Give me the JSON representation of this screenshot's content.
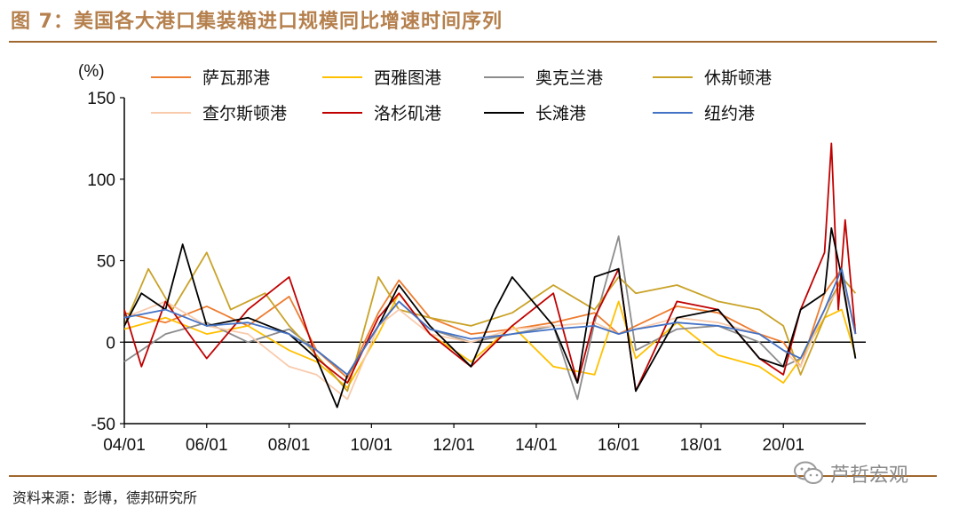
{
  "figure": {
    "title": "图 7：美国各大港口集装箱进口规模同比增速时间序列",
    "source": "资料来源：彭博，德邦研究所",
    "watermark": "芦哲宏观"
  },
  "chart_data": {
    "type": "line",
    "ylabel": "(%)",
    "ylim": [
      -50,
      150
    ],
    "yticks": [
      -50,
      0,
      50,
      100,
      150
    ],
    "ytick_labels": [
      "-50",
      "0",
      "50",
      "100",
      "150"
    ],
    "x_start": "2004-01",
    "x_end": "2022-01",
    "xticks": [
      "2004-01",
      "2006-01",
      "2008-01",
      "2010-01",
      "2012-01",
      "2014-01",
      "2016-01",
      "2018-01",
      "2020-01"
    ],
    "xtick_labels": [
      "04/01",
      "06/01",
      "08/01",
      "10/01",
      "12/01",
      "14/01",
      "16/01",
      "18/01",
      "20/01"
    ],
    "legend_position": "top",
    "series": [
      {
        "name": "萨瓦那港",
        "color": "#ed7d31",
        "x": [
          "2004-01",
          "2005-01",
          "2006-01",
          "2007-01",
          "2008-01",
          "2008-09",
          "2009-06",
          "2010-03",
          "2010-09",
          "2011-06",
          "2012-06",
          "2013-06",
          "2014-06",
          "2015-06",
          "2016-01",
          "2016-06",
          "2017-06",
          "2018-06",
          "2019-06",
          "2020-01",
          "2020-06",
          "2021-01",
          "2021-06",
          "2021-10"
        ],
        "values": [
          18,
          12,
          22,
          10,
          28,
          -5,
          -22,
          18,
          38,
          15,
          5,
          8,
          12,
          18,
          5,
          10,
          22,
          18,
          5,
          0,
          -15,
          30,
          45,
          5
        ]
      },
      {
        "name": "西雅图港",
        "color": "#ffc000",
        "x": [
          "2004-01",
          "2005-01",
          "2006-01",
          "2007-01",
          "2008-01",
          "2008-09",
          "2009-06",
          "2010-03",
          "2010-09",
          "2011-06",
          "2012-06",
          "2013-06",
          "2014-06",
          "2015-06",
          "2016-01",
          "2016-06",
          "2017-06",
          "2018-06",
          "2019-06",
          "2020-01",
          "2020-06",
          "2021-01",
          "2021-06",
          "2021-10"
        ],
        "values": [
          8,
          15,
          5,
          10,
          -5,
          -12,
          -28,
          5,
          30,
          5,
          -12,
          10,
          -15,
          -20,
          25,
          -10,
          12,
          -8,
          -15,
          -25,
          -10,
          15,
          20,
          -8
        ]
      },
      {
        "name": "奥克兰港",
        "color": "#8c8c8c",
        "x": [
          "2004-01",
          "2005-01",
          "2006-01",
          "2007-01",
          "2008-01",
          "2008-09",
          "2009-06",
          "2010-03",
          "2010-09",
          "2011-06",
          "2012-06",
          "2013-06",
          "2014-06",
          "2015-01",
          "2015-06",
          "2016-01",
          "2016-06",
          "2017-06",
          "2018-06",
          "2019-06",
          "2020-01",
          "2020-06",
          "2021-01",
          "2021-06",
          "2021-10"
        ],
        "values": [
          -12,
          5,
          12,
          0,
          8,
          -5,
          -20,
          10,
          25,
          8,
          0,
          5,
          10,
          -35,
          12,
          65,
          -5,
          8,
          10,
          0,
          -15,
          -10,
          20,
          38,
          -10
        ]
      },
      {
        "name": "休斯顿港",
        "color": "#c9a227",
        "x": [
          "2004-01",
          "2004-08",
          "2005-03",
          "2006-01",
          "2006-08",
          "2007-06",
          "2008-01",
          "2008-09",
          "2009-06",
          "2010-03",
          "2010-09",
          "2011-06",
          "2012-06",
          "2013-06",
          "2014-06",
          "2015-06",
          "2016-01",
          "2016-06",
          "2017-06",
          "2018-06",
          "2019-06",
          "2020-01",
          "2020-06",
          "2021-01",
          "2021-06",
          "2021-10"
        ],
        "values": [
          10,
          45,
          20,
          55,
          20,
          30,
          10,
          -8,
          -30,
          40,
          20,
          15,
          10,
          18,
          35,
          20,
          40,
          30,
          35,
          25,
          20,
          10,
          -20,
          15,
          40,
          30
        ]
      },
      {
        "name": "查尔斯顿港",
        "color": "#f8cbad",
        "x": [
          "2004-01",
          "2005-01",
          "2006-01",
          "2007-01",
          "2008-01",
          "2008-09",
          "2009-06",
          "2010-03",
          "2010-09",
          "2011-06",
          "2012-06",
          "2013-06",
          "2014-06",
          "2015-06",
          "2016-01",
          "2016-06",
          "2017-06",
          "2018-06",
          "2019-06",
          "2020-01",
          "2020-06",
          "2021-01",
          "2021-06",
          "2021-10"
        ],
        "values": [
          15,
          25,
          10,
          5,
          -15,
          -20,
          -35,
          10,
          20,
          5,
          0,
          8,
          10,
          12,
          5,
          8,
          15,
          12,
          5,
          -5,
          -15,
          20,
          35,
          10
        ]
      },
      {
        "name": "洛杉矶港",
        "color": "#c00000",
        "x": [
          "2004-01",
          "2004-06",
          "2005-01",
          "2006-01",
          "2007-01",
          "2008-01",
          "2008-09",
          "2009-06",
          "2010-03",
          "2010-09",
          "2011-06",
          "2012-06",
          "2013-06",
          "2014-06",
          "2015-01",
          "2015-06",
          "2016-01",
          "2016-06",
          "2017-06",
          "2018-06",
          "2019-06",
          "2020-01",
          "2020-06",
          "2021-01",
          "2021-03",
          "2021-05",
          "2021-07",
          "2021-10"
        ],
        "values": [
          20,
          -15,
          25,
          -10,
          20,
          40,
          -10,
          -25,
          15,
          30,
          5,
          -15,
          10,
          30,
          -25,
          15,
          45,
          -30,
          25,
          20,
          -10,
          -20,
          20,
          55,
          122,
          20,
          75,
          5
        ]
      },
      {
        "name": "长滩港",
        "color": "#000000",
        "x": [
          "2004-01",
          "2004-06",
          "2005-01",
          "2005-06",
          "2006-01",
          "2007-01",
          "2008-01",
          "2008-09",
          "2009-03",
          "2009-06",
          "2010-03",
          "2010-09",
          "2011-06",
          "2012-06",
          "2013-01",
          "2013-06",
          "2014-06",
          "2015-01",
          "2015-06",
          "2016-01",
          "2016-06",
          "2017-06",
          "2018-06",
          "2019-06",
          "2020-01",
          "2020-06",
          "2021-01",
          "2021-03",
          "2021-06",
          "2021-10"
        ],
        "values": [
          10,
          30,
          20,
          60,
          10,
          15,
          5,
          -10,
          -40,
          -20,
          10,
          35,
          10,
          -15,
          20,
          40,
          10,
          -25,
          40,
          45,
          -30,
          15,
          20,
          -10,
          -15,
          20,
          30,
          70,
          40,
          -10
        ]
      },
      {
        "name": "纽约港",
        "color": "#4472c4",
        "x": [
          "2004-01",
          "2005-01",
          "2006-01",
          "2007-01",
          "2008-01",
          "2008-09",
          "2009-06",
          "2010-03",
          "2010-09",
          "2011-06",
          "2012-06",
          "2013-06",
          "2014-06",
          "2015-06",
          "2016-01",
          "2016-06",
          "2017-06",
          "2018-06",
          "2019-06",
          "2020-01",
          "2020-06",
          "2021-01",
          "2021-06",
          "2021-10"
        ],
        "values": [
          15,
          20,
          10,
          12,
          5,
          -5,
          -20,
          10,
          25,
          8,
          2,
          5,
          8,
          10,
          5,
          8,
          12,
          10,
          5,
          -5,
          -10,
          20,
          45,
          5
        ]
      }
    ]
  }
}
